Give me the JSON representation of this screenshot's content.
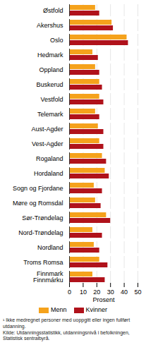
{
  "chart_data": {
    "type": "bar",
    "orientation": "horizontal",
    "categories": [
      "Østfold",
      "Akershus",
      "Oslo",
      "Hedmark",
      "Oppland",
      "Buskerud",
      "Vestfold",
      "Telemark",
      "Aust-Agder",
      "Vest-Agder",
      "Rogaland",
      "Hordaland",
      "Sogn og Fjordane",
      "Møre og Romsdal",
      "Sør-Trøndelag",
      "Nord-Trøndelag",
      "Nordland",
      "Troms Romsa",
      "Finnmark\nFinnmárku"
    ],
    "series": [
      {
        "name": "Menn",
        "color": "#f5a21c",
        "values": [
          19,
          31,
          42,
          17,
          19,
          22,
          22,
          19,
          21,
          22,
          24,
          26,
          18,
          19,
          27,
          17,
          18,
          22,
          17
        ]
      },
      {
        "name": "Kvinner",
        "color": "#b0121b",
        "values": [
          22,
          32,
          43,
          21,
          22,
          24,
          25,
          22,
          25,
          25,
          27,
          29,
          24,
          23,
          30,
          24,
          22,
          28,
          26
        ]
      }
    ],
    "x_label": "Prosent",
    "xlim": [
      0,
      50
    ],
    "xticks": [
      0,
      10,
      20,
      30,
      40,
      50
    ],
    "grid": true,
    "legend": "bottom",
    "annotations": [
      "¹ Ikke medregnet personer med uoppgitt eller ingen fullført utdanning.",
      "Kilde: Utdanningsstatistikk, utdanningsnivå i befolkningen, Statistisk sentralbyrå."
    ]
  }
}
